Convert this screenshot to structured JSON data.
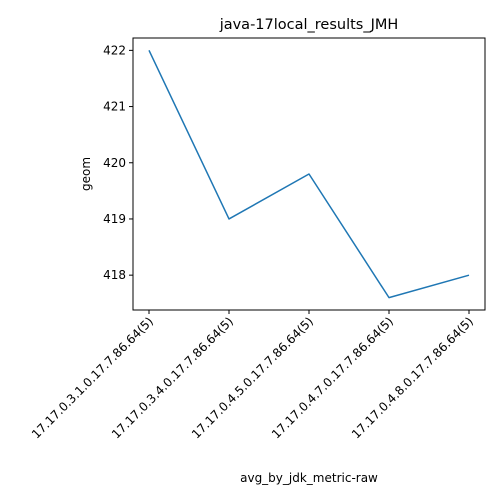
{
  "chart_data": {
    "type": "line",
    "title": "java-17local_results_JMH",
    "xlabel": "avg_by_jdk_metric-raw",
    "ylabel": "geom",
    "categories": [
      "17.17.0.3.1.0.17.7.86.64(5)",
      "17.17.0.3.4.0.17.7.86.64(5)",
      "17.17.0.4.5.0.17.7.86.64(5)",
      "17.17.0.4.7.0.17.7.86.64(5)",
      "17.17.0.4.8.0.17.7.86.64(5)"
    ],
    "series": [
      {
        "values": [
          422.0,
          419.0,
          419.8,
          417.6,
          418.0
        ]
      }
    ],
    "ylim": [
      417.38,
      422.22
    ],
    "yticks": [
      418,
      419,
      420,
      421,
      422
    ],
    "grid": false,
    "line_color": "#1f77b4"
  }
}
